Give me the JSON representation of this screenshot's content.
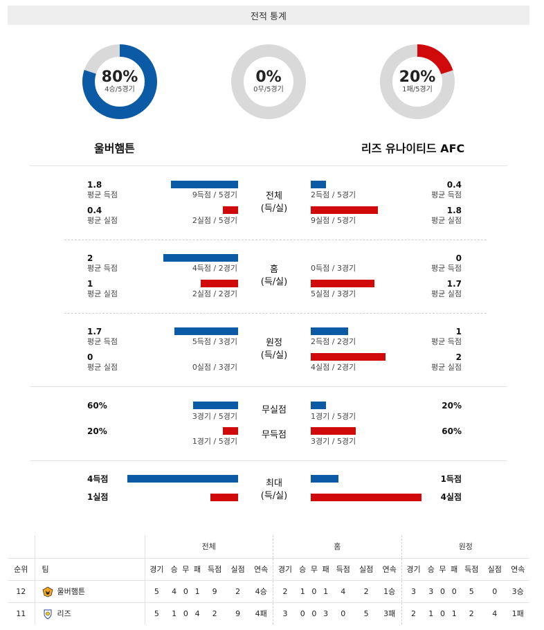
{
  "header": {
    "title": "전적 통계"
  },
  "donuts": [
    {
      "name": "win",
      "pct": "80%",
      "sub": "4승/5경기",
      "fraction": 0.8,
      "color": "#0a5aa5"
    },
    {
      "name": "draw",
      "pct": "0%",
      "sub": "0무/5경기",
      "fraction": 0.0,
      "color": "#0a5aa5"
    },
    {
      "name": "loss",
      "pct": "20%",
      "sub": "1패/5경기",
      "fraction": 0.2,
      "color": "#d00a0a"
    }
  ],
  "teams": {
    "home": "울버햄튼",
    "away": "리즈 유나이티드 AFC"
  },
  "labels": {
    "avg_scored": "평균 득점",
    "avg_conceded": "평균 실점"
  },
  "sections": {
    "total": {
      "title1": "전체",
      "title2": "(득/실)",
      "home": {
        "scored": "1.8",
        "scored_cnt": "9득점 / 5경기",
        "scored_frac": 0.9,
        "conceded": "0.4",
        "conceded_cnt": "2실점 / 5경기",
        "conceded_frac": 0.2
      },
      "away": {
        "scored": "0.4",
        "scored_cnt": "2득점 / 5경기",
        "scored_frac": 0.2,
        "conceded": "1.8",
        "conceded_cnt": "9실점 / 5경기",
        "conceded_frac": 0.9
      }
    },
    "home": {
      "title1": "홈",
      "title2": "(득/실)",
      "home": {
        "scored": "2",
        "scored_cnt": "4득점 / 2경기",
        "scored_frac": 1.0,
        "conceded": "1",
        "conceded_cnt": "2실점 / 2경기",
        "conceded_frac": 0.5
      },
      "away": {
        "scored": "0",
        "scored_cnt": "0득점 / 3경기",
        "scored_frac": 0.0,
        "conceded": "1.7",
        "conceded_cnt": "5실점 / 3경기",
        "conceded_frac": 0.85
      }
    },
    "away": {
      "title1": "원정",
      "title2": "(득/실)",
      "home": {
        "scored": "1.7",
        "scored_cnt": "5득점 / 3경기",
        "scored_frac": 0.85,
        "conceded": "0",
        "conceded_cnt": "0실점 / 3경기",
        "conceded_frac": 0.0
      },
      "away": {
        "scored": "1",
        "scored_cnt": "2득점 / 2경기",
        "scored_frac": 0.5,
        "conceded": "2",
        "conceded_cnt": "4실점 / 2경기",
        "conceded_frac": 1.0
      }
    },
    "clean": {
      "title_a": "무실점",
      "title_b": "무득점",
      "home": {
        "a": "60%",
        "a_cnt": "3경기 / 5경기",
        "a_frac": 0.6,
        "b": "20%",
        "b_cnt": "1경기 / 5경기",
        "b_frac": 0.2
      },
      "away": {
        "a": "20%",
        "a_cnt": "1경기 / 5경기",
        "a_frac": 0.2,
        "b": "60%",
        "b_cnt": "3경기 / 5경기",
        "b_frac": 0.6
      }
    },
    "max": {
      "title1": "최대",
      "title2": "(득/실)",
      "home": {
        "scored": "4득점",
        "scored_frac": 1.0,
        "conceded": "1실점",
        "conceded_frac": 0.25
      },
      "away": {
        "scored": "1득점",
        "scored_frac": 0.25,
        "conceded": "4실점",
        "conceded_frac": 1.0
      }
    }
  },
  "standings": {
    "group_headers": [
      "전체",
      "홈",
      "원정"
    ],
    "col_rank": "순위",
    "col_team": "팀",
    "sub_headers": [
      "경기",
      "승",
      "무",
      "패",
      "득점",
      "실점",
      "연속"
    ],
    "rows": [
      {
        "rank": "12",
        "team": "울버햄튼",
        "crest": "wolves-crest",
        "total": [
          "5",
          "4",
          "0",
          "1",
          "9",
          "2",
          "4승"
        ],
        "home": [
          "2",
          "1",
          "0",
          "1",
          "4",
          "2",
          "1승"
        ],
        "away": [
          "3",
          "3",
          "0",
          "0",
          "5",
          "0",
          "3승"
        ]
      },
      {
        "rank": "11",
        "team": "리즈",
        "crest": "leeds-crest",
        "total": [
          "5",
          "1",
          "0",
          "4",
          "2",
          "9",
          "4패"
        ],
        "home": [
          "3",
          "0",
          "0",
          "3",
          "0",
          "5",
          "3패"
        ],
        "away": [
          "2",
          "1",
          "0",
          "1",
          "2",
          "4",
          "1패"
        ]
      }
    ]
  }
}
